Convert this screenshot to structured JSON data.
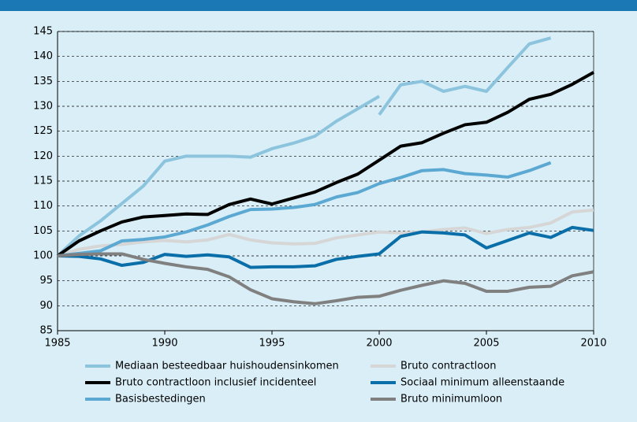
{
  "chart_data": {
    "type": "line",
    "x": [
      1985,
      1986,
      1987,
      1988,
      1989,
      1990,
      1991,
      1992,
      1993,
      1994,
      1995,
      1996,
      1997,
      1998,
      1999,
      2000,
      2001,
      2002,
      2003,
      2004,
      2005,
      2006,
      2007,
      2008,
      2009,
      2010
    ],
    "xlim": [
      1985,
      2010
    ],
    "xticks": [
      1985,
      1990,
      1995,
      2000,
      2005,
      2010
    ],
    "ylim": [
      85,
      145
    ],
    "yticks": [
      85,
      90,
      95,
      100,
      105,
      110,
      115,
      120,
      125,
      130,
      135,
      140,
      145
    ],
    "grid": true,
    "series": [
      {
        "name": "Mediaan besteedbaar huishoudensinkomen",
        "color": "#8cc4de",
        "x": [
          1985,
          1986,
          1987,
          1988,
          1989,
          1990,
          1991,
          1992,
          1993,
          1994,
          1995,
          1996,
          1997,
          1998,
          1999,
          2000,
          2000,
          2000,
          2001,
          2002,
          2003,
          2004,
          2005,
          2006,
          2007,
          2008
        ],
        "values": [
          100,
          104,
          107,
          110.5,
          114,
          119,
          120,
          120,
          120,
          119.8,
          121.5,
          122.6,
          124,
          127,
          129.5,
          132,
          null,
          128.3,
          134.3,
          135,
          133,
          134,
          133,
          137.8,
          142.5,
          143.7
        ]
      },
      {
        "name": "Bruto contractloon",
        "color": "#d6d6d6",
        "values": [
          100,
          101.3,
          102,
          102.3,
          102.8,
          103.1,
          102.8,
          103.2,
          104.3,
          103.2,
          102.6,
          102.4,
          102.5,
          103.6,
          104.2,
          104.8,
          104.6,
          104.8,
          105.3,
          105.6,
          104.5,
          105.3,
          105.7,
          106.6,
          108.8,
          109.2
        ]
      },
      {
        "name": "Bruto contractloon inclusief incidenteel",
        "color": "#000000",
        "values": [
          100,
          103,
          105,
          106.8,
          107.8,
          108.1,
          108.4,
          108.3,
          110.3,
          111.4,
          110.4,
          111.6,
          112.8,
          114.7,
          116.4,
          119.2,
          122,
          122.7,
          124.6,
          126.3,
          126.8,
          128.8,
          131.4,
          132.4,
          134.4,
          136.8
        ]
      },
      {
        "name": "Sociaal minimum alleenstaande",
        "color": "#0a6ea8",
        "values": [
          100,
          99.9,
          99.4,
          98.1,
          98.7,
          100.3,
          99.9,
          100.2,
          99.8,
          97.7,
          97.8,
          97.8,
          98,
          99.3,
          99.9,
          100.4,
          103.9,
          104.8,
          104.6,
          104.2,
          101.6,
          103.1,
          104.6,
          103.7,
          105.7,
          105.1
        ]
      },
      {
        "name": "Basisbestedingen",
        "color": "#5ba8d2",
        "values": [
          100,
          100.5,
          101,
          103,
          103.3,
          103.8,
          104.8,
          106.2,
          107.9,
          109.3,
          109.4,
          109.7,
          110.3,
          111.8,
          112.7,
          114.5,
          115.7,
          117.1,
          117.3,
          116.5,
          116.2,
          115.8,
          117.1,
          118.7,
          null,
          null
        ]
      },
      {
        "name": "Bruto minimumloon",
        "color": "#808080",
        "values": [
          100,
          100.3,
          100.4,
          100.4,
          99.3,
          98.5,
          97.8,
          97.3,
          95.8,
          93.2,
          91.4,
          90.8,
          90.4,
          91,
          91.7,
          91.9,
          93.1,
          94.1,
          95,
          94.5,
          92.9,
          92.9,
          93.7,
          93.9,
          96,
          96.8
        ]
      }
    ]
  }
}
